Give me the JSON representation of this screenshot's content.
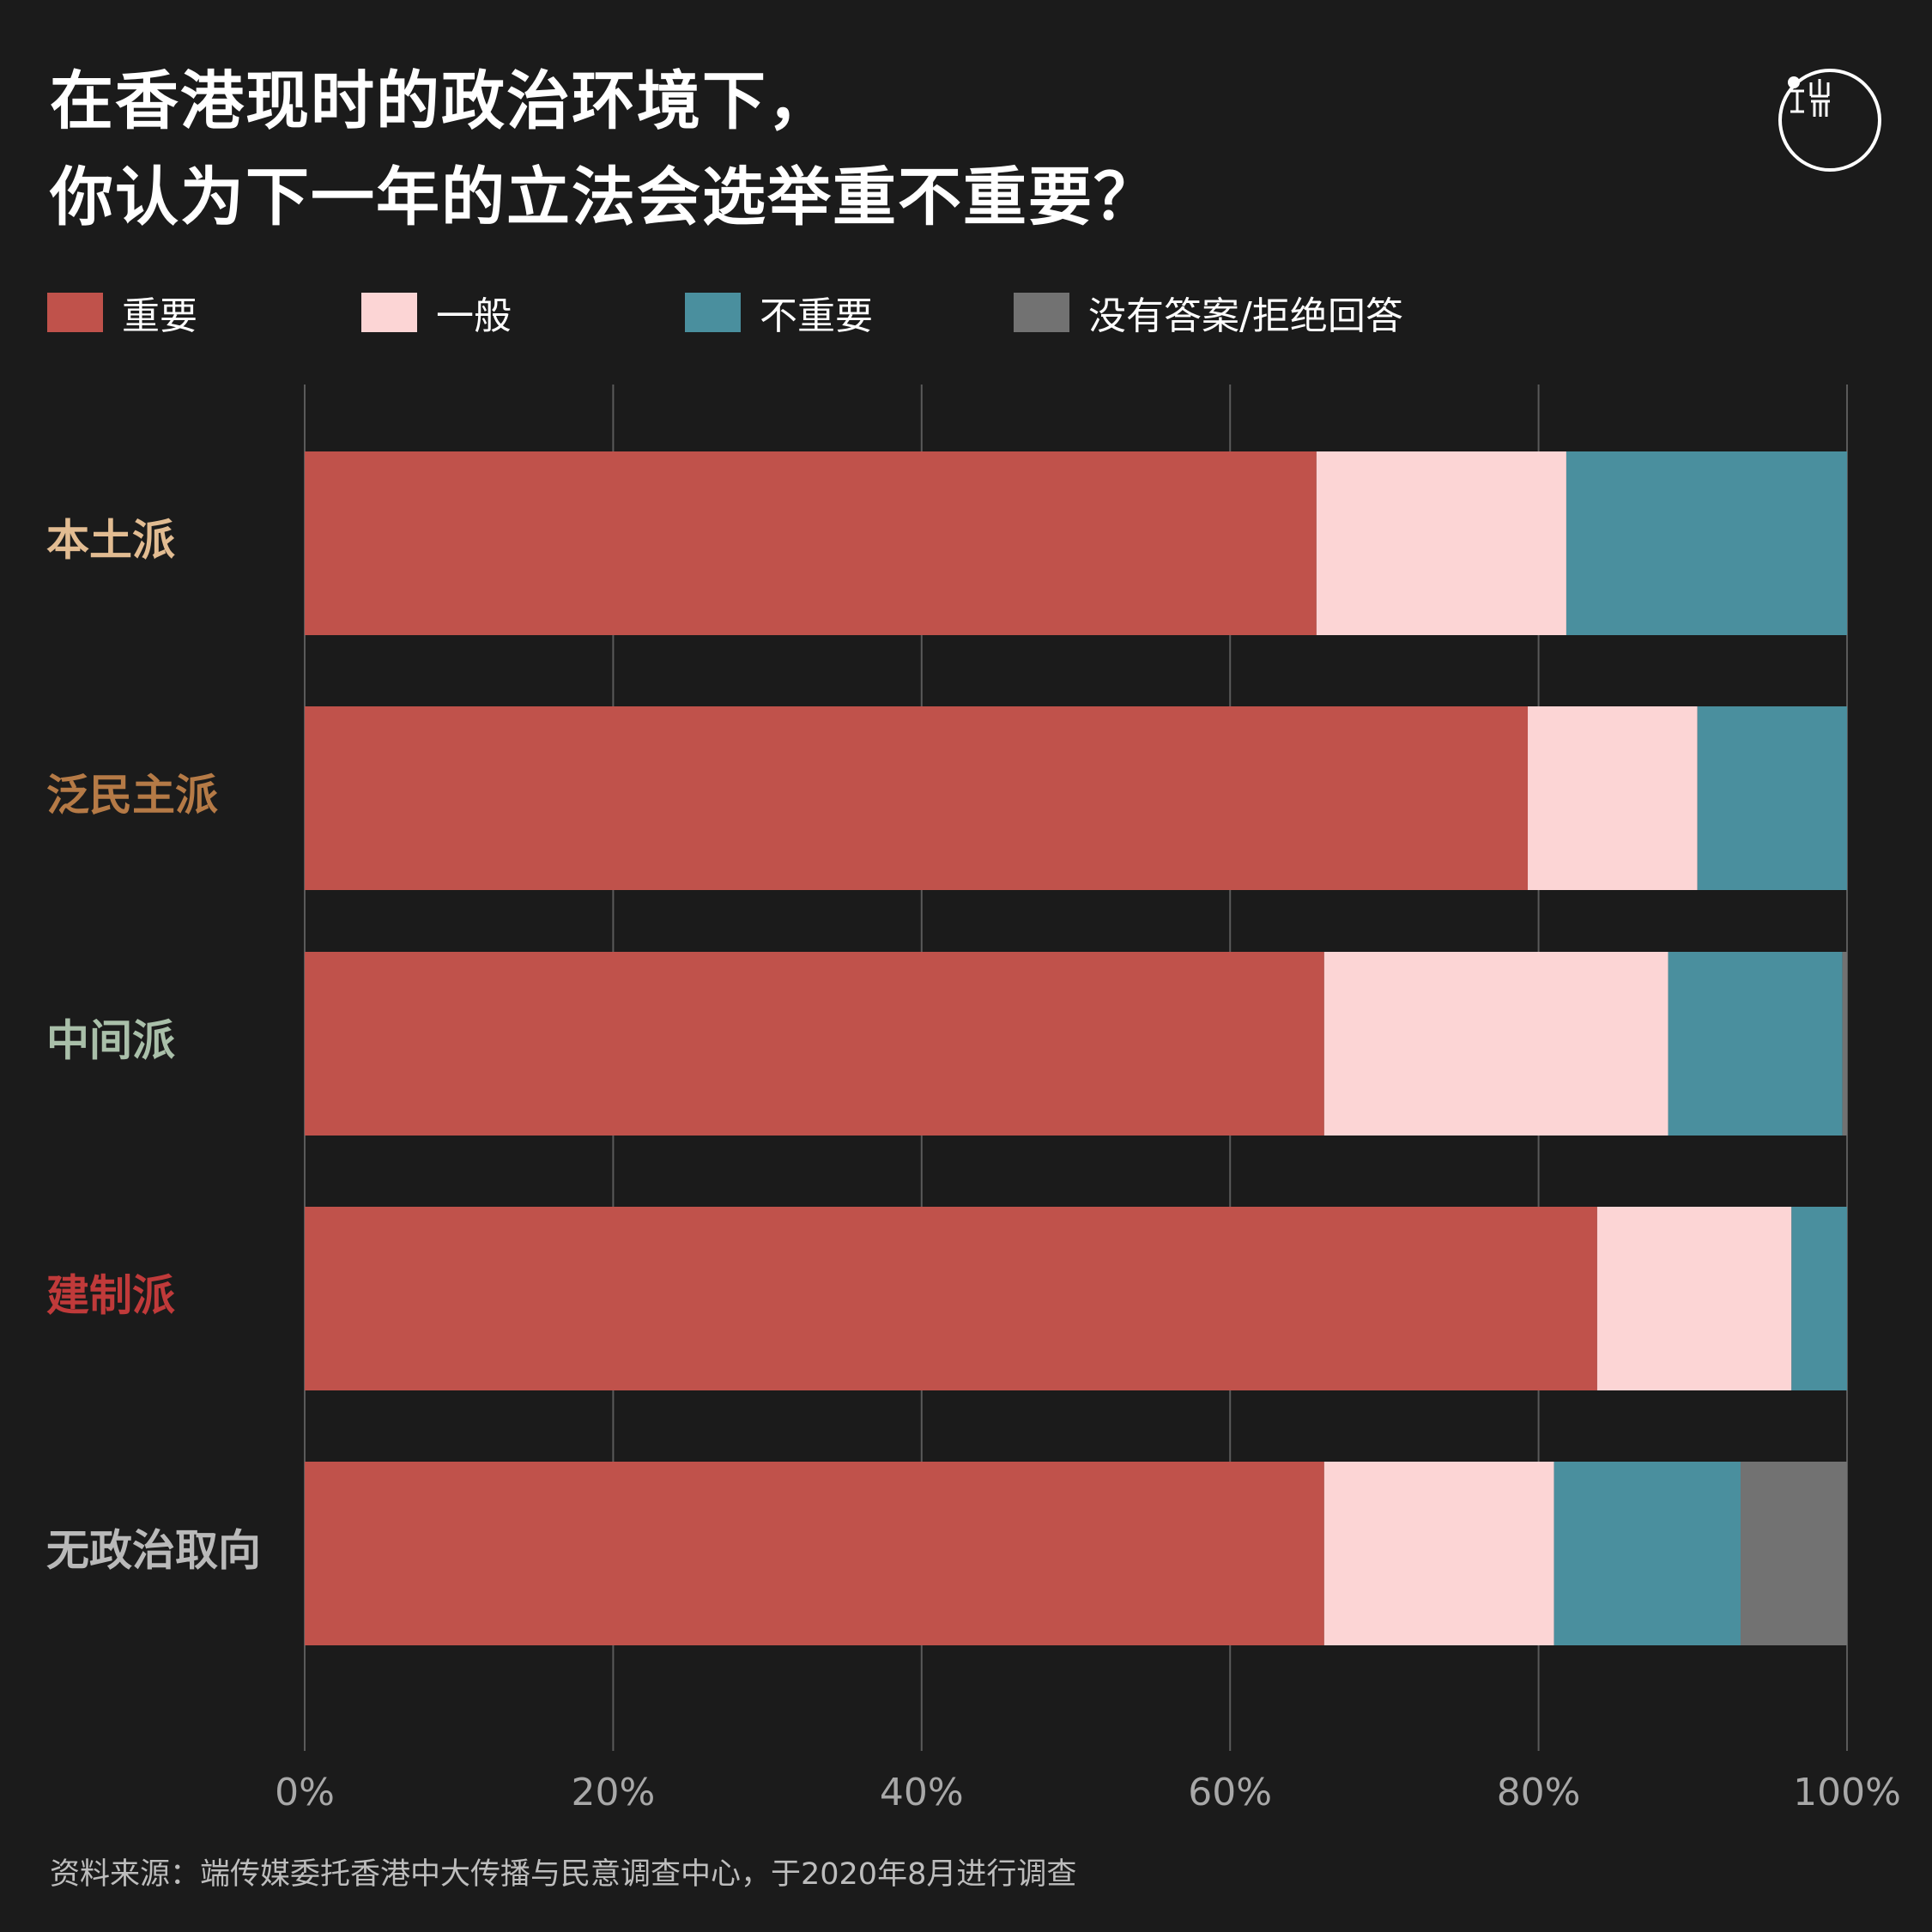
{
  "title": {
    "line1": "在香港现时的政治环境下，",
    "line2": "你认为下一年的立法会选举重不重要？"
  },
  "logo": {
    "icon": "initium-logo-icon"
  },
  "colors": {
    "background": "#1b1b1b",
    "grid": "#5a5a5a",
    "tick_label": "#a8a8a8"
  },
  "chart_data": {
    "type": "bar",
    "orientation": "horizontal",
    "stacked": true,
    "categories": [
      "本土派",
      "泛民主派",
      "中间派",
      "建制派",
      "无政治取向"
    ],
    "category_colors": [
      "#e2bc92",
      "#b57a46",
      "#a9bfa9",
      "#c03a3a",
      "#b9b9b9"
    ],
    "series": [
      {
        "name": "重要",
        "color": "#c0524b",
        "values": [
          65.6,
          79.3,
          66.1,
          83.8,
          66.1
        ]
      },
      {
        "name": "一般",
        "color": "#fcd5d5",
        "values": [
          16.2,
          11.0,
          22.3,
          12.6,
          14.9
        ]
      },
      {
        "name": "不重要",
        "color": "#4a8f9e",
        "values": [
          18.2,
          9.7,
          11.3,
          3.6,
          12.1
        ]
      },
      {
        "name": "没有答案/拒绝回答",
        "color": "#727272",
        "values": [
          0.0,
          0.0,
          0.3,
          0.0,
          6.9
        ]
      }
    ],
    "xlim": [
      0,
      100
    ],
    "x_ticks": [
      "0%",
      "20%",
      "40%",
      "60%",
      "80%",
      "100%"
    ],
    "grid": true,
    "legend_position": "top-left"
  },
  "source": "资料来源：端传媒委托香港中大传播与民意调查中心，于2020年8月进行调查"
}
